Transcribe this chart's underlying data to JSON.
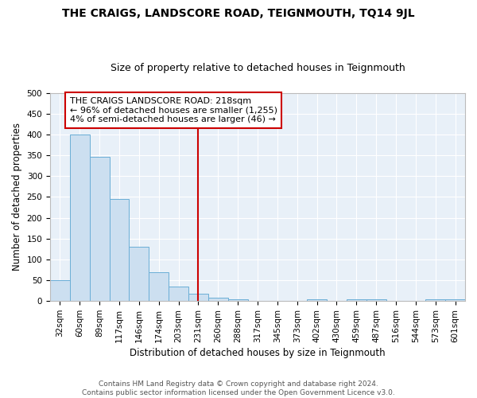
{
  "title": "THE CRAIGS, LANDSCORE ROAD, TEIGNMOUTH, TQ14 9JL",
  "subtitle": "Size of property relative to detached houses in Teignmouth",
  "xlabel": "Distribution of detached houses by size in Teignmouth",
  "ylabel": "Number of detached properties",
  "categories": [
    "32sqm",
    "60sqm",
    "89sqm",
    "117sqm",
    "146sqm",
    "174sqm",
    "203sqm",
    "231sqm",
    "260sqm",
    "288sqm",
    "317sqm",
    "345sqm",
    "373sqm",
    "402sqm",
    "430sqm",
    "459sqm",
    "487sqm",
    "516sqm",
    "544sqm",
    "573sqm",
    "601sqm"
  ],
  "values": [
    51,
    401,
    346,
    246,
    131,
    70,
    35,
    18,
    8,
    5,
    1,
    1,
    1,
    5,
    1,
    5,
    4,
    1,
    1,
    5,
    4
  ],
  "bar_color_face": "#ccdff0",
  "bar_color_edge": "#6aaed6",
  "marker_x": "231sqm",
  "marker_color": "#cc0000",
  "annotation_text": "THE CRAIGS LANDSCORE ROAD: 218sqm\n← 96% of detached houses are smaller (1,255)\n4% of semi-detached houses are larger (46) →",
  "annotation_box_color": "#ffffff",
  "annotation_box_edge": "#cc0000",
  "ylim": [
    0,
    500
  ],
  "yticks": [
    0,
    50,
    100,
    150,
    200,
    250,
    300,
    350,
    400,
    450,
    500
  ],
  "footer": "Contains HM Land Registry data © Crown copyright and database right 2024.\nContains public sector information licensed under the Open Government Licence v3.0.",
  "bg_color": "#ffffff",
  "plot_bg_color": "#e8f0f8",
  "grid_color": "#ffffff",
  "title_fontsize": 10,
  "subtitle_fontsize": 9,
  "axis_label_fontsize": 8.5,
  "tick_fontsize": 7.5,
  "annotation_fontsize": 8,
  "footer_fontsize": 6.5
}
